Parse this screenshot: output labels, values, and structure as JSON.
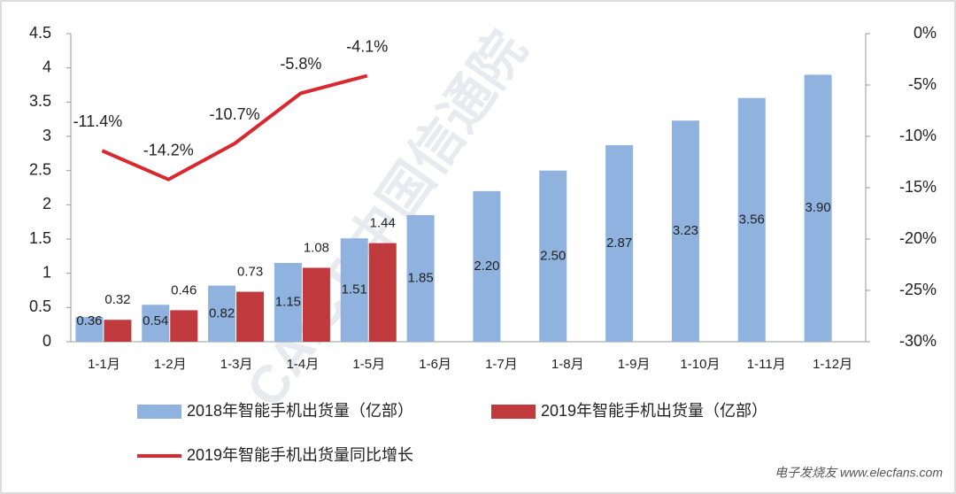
{
  "chart_data": {
    "type": "bar",
    "categories": [
      "1-1月",
      "1-2月",
      "1-3月",
      "1-4月",
      "1-5月",
      "1-6月",
      "1-7月",
      "1-8月",
      "1-9月",
      "1-10月",
      "1-11月",
      "1-12月"
    ],
    "series": [
      {
        "name": "2018年智能手机出货量（亿部）",
        "color": "#8fb3de",
        "values": [
          0.36,
          0.54,
          0.82,
          1.15,
          1.51,
          1.85,
          2.2,
          2.5,
          2.87,
          3.23,
          3.56,
          3.9
        ],
        "value_labels": [
          "0.36",
          "0.54",
          "0.82",
          "1.15",
          "1.51",
          "1.85",
          "2.20",
          "2.50",
          "2.87",
          "3.23",
          "3.56",
          "3.90"
        ]
      },
      {
        "name": "2019年智能手机出货量（亿部）",
        "color": "#c0393c",
        "values": [
          0.32,
          0.46,
          0.73,
          1.08,
          1.44,
          null,
          null,
          null,
          null,
          null,
          null,
          null
        ],
        "value_labels": [
          "0.32",
          "0.46",
          "0.73",
          "1.08",
          "1.44",
          null,
          null,
          null,
          null,
          null,
          null,
          null
        ]
      },
      {
        "name": "2019年智能手机出货量同比增长",
        "color": "#d9282f",
        "type": "line",
        "axis": "y2",
        "values": [
          -11.4,
          -14.2,
          -10.7,
          -5.8,
          -4.1,
          null,
          null,
          null,
          null,
          null,
          null,
          null
        ],
        "value_labels": [
          "-11.4%",
          "-14.2%",
          "-10.7%",
          "-5.8%",
          "-4.1%",
          null,
          null,
          null,
          null,
          null,
          null,
          null
        ]
      }
    ],
    "ylim": [
      0,
      4.5
    ],
    "yticks": [
      0,
      0.5,
      1,
      1.5,
      2,
      2.5,
      3,
      3.5,
      4,
      4.5
    ],
    "y2lim": [
      -30,
      0
    ],
    "y2ticks": [
      {
        "value": -30,
        "label": "-30%"
      },
      {
        "value": -25,
        "label": "-25%"
      },
      {
        "value": -20,
        "label": "-20%"
      },
      {
        "value": -15,
        "label": "-15%"
      },
      {
        "value": -10,
        "label": "-10%"
      },
      {
        "value": -5,
        "label": "-5%"
      },
      {
        "value": 0,
        "label": "0%"
      }
    ],
    "grid": false,
    "legend": "bottom",
    "watermark": "CAICT 中国信通院",
    "source": "电子发烧友 www.elecfans.com"
  }
}
